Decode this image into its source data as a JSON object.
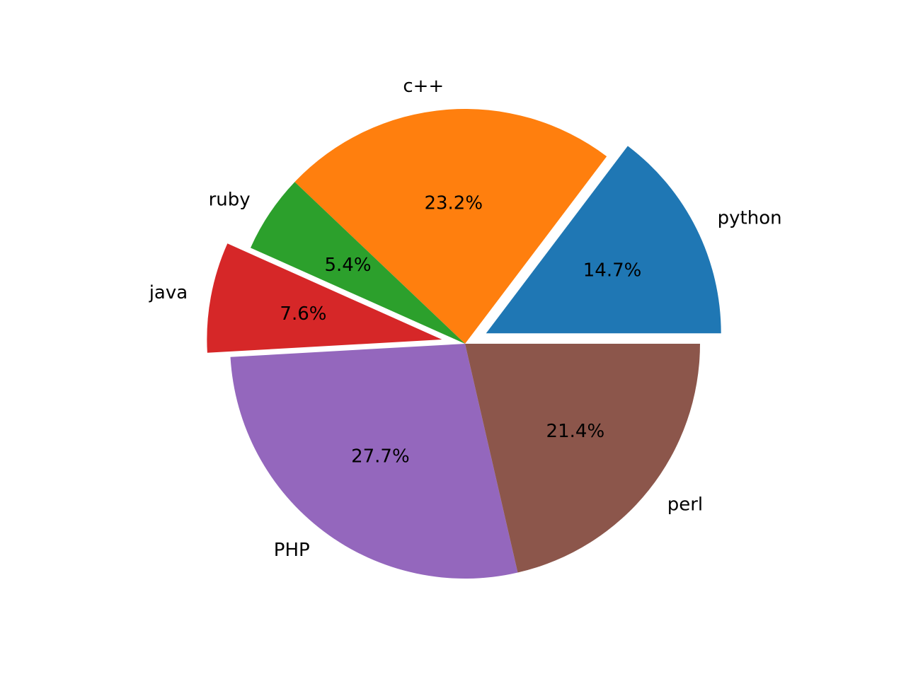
{
  "chart_data": {
    "type": "pie",
    "categories": [
      "python",
      "c++",
      "ruby",
      "java",
      "PHP",
      "perl"
    ],
    "values": [
      14.7,
      23.2,
      5.4,
      7.6,
      27.7,
      21.4
    ],
    "percent_labels": [
      "14.7%",
      "23.2%",
      "5.4%",
      "7.6%",
      "27.7%",
      "21.4%"
    ],
    "exploded": [
      true,
      false,
      false,
      true,
      false,
      false
    ],
    "colors": [
      "#1f77b4",
      "#ff7f0e",
      "#2ca02c",
      "#d62728",
      "#9467bd",
      "#8c564b"
    ],
    "start_angle_deg": 0,
    "direction": "counterclockwise",
    "title": "",
    "legend": "none"
  }
}
